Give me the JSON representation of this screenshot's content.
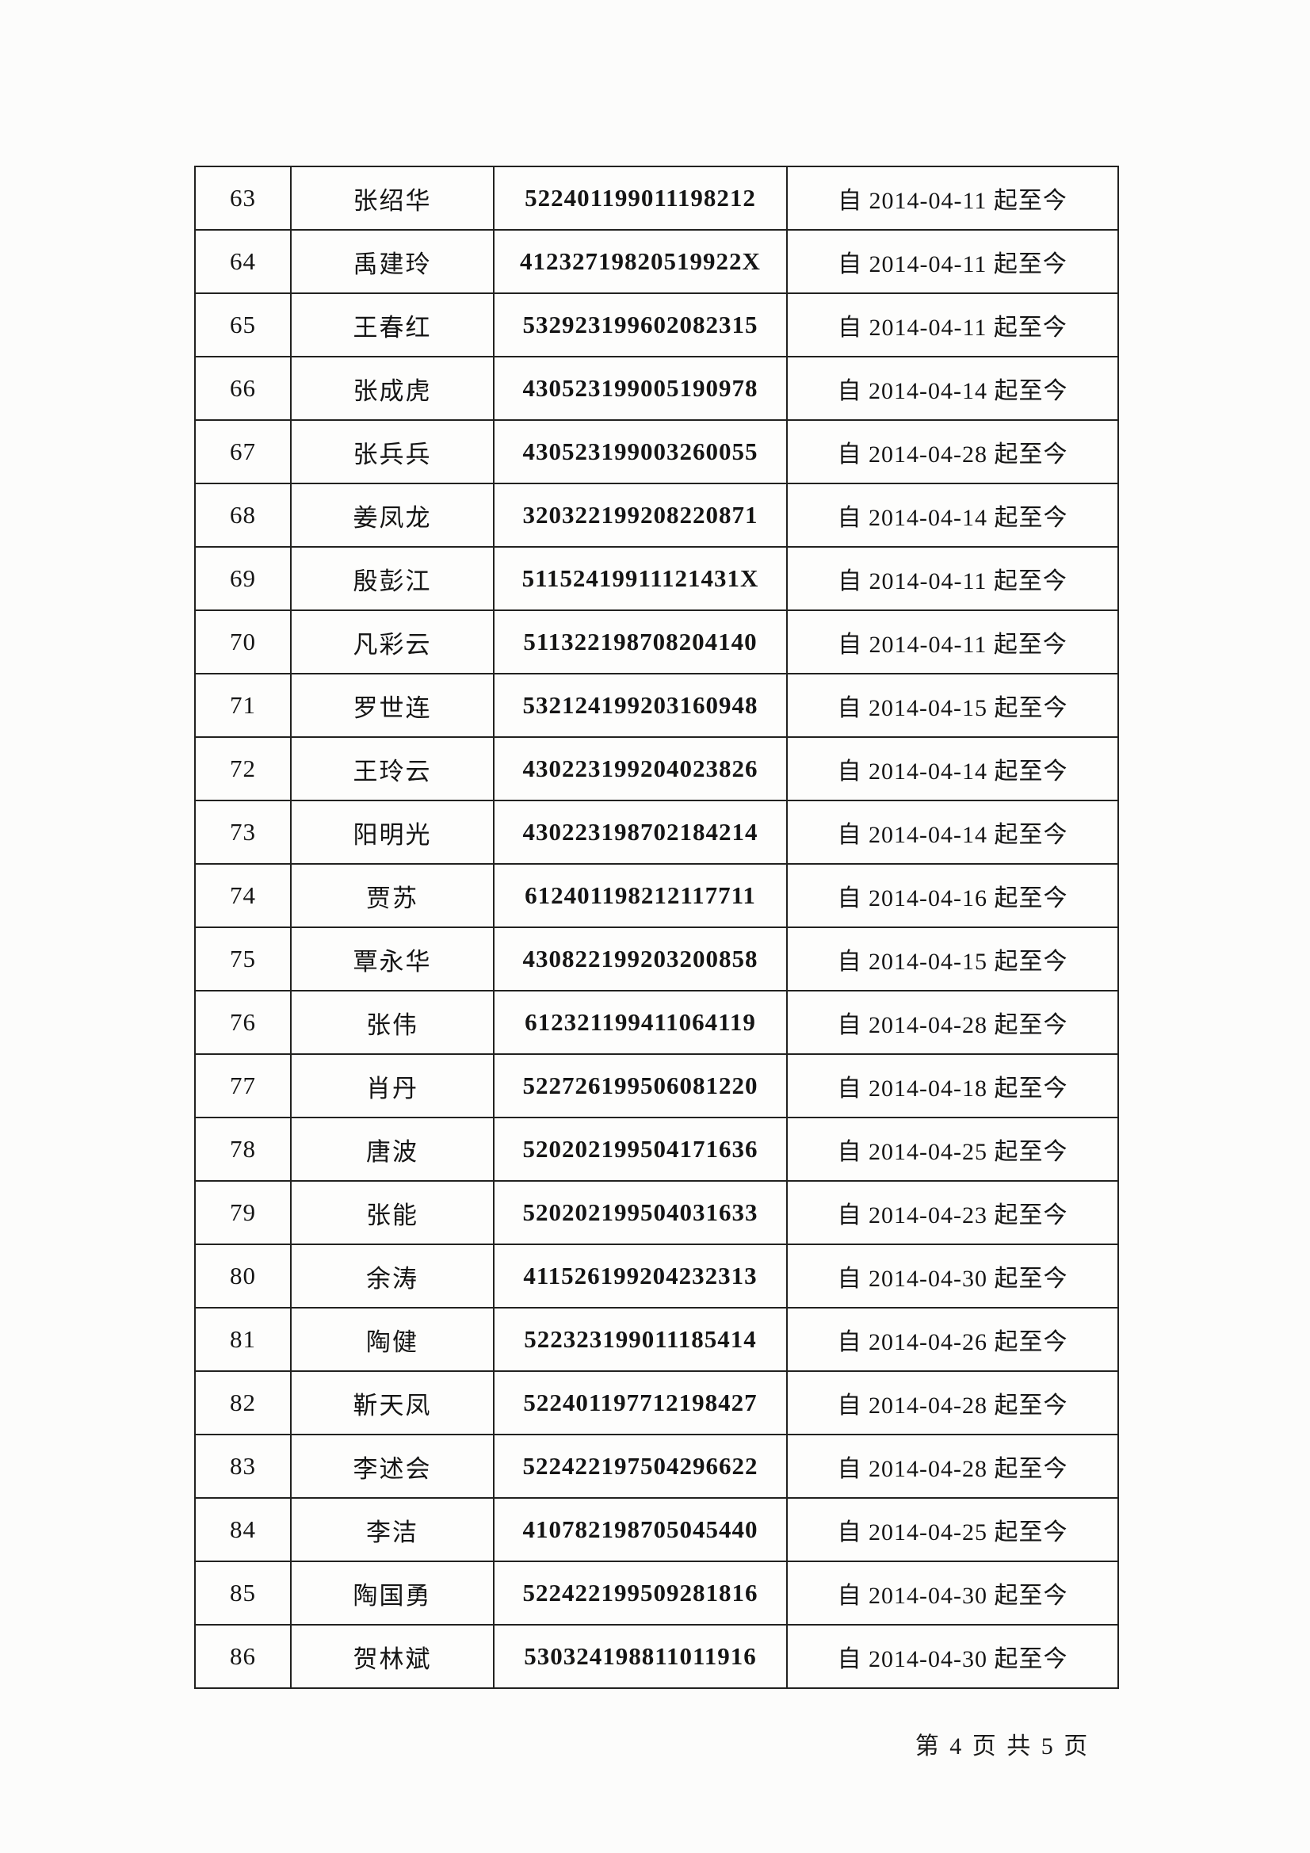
{
  "page": {
    "footer": "第 4 页 共 5 页"
  },
  "table": {
    "rows": [
      {
        "num": "63",
        "name": "张绍华",
        "id_number": "522401199011198212",
        "period": "自 2014-04-11 起至今"
      },
      {
        "num": "64",
        "name": "禹建玲",
        "id_number": "41232719820519922X",
        "period": "自 2014-04-11 起至今"
      },
      {
        "num": "65",
        "name": "王春红",
        "id_number": "532923199602082315",
        "period": "自 2014-04-11 起至今"
      },
      {
        "num": "66",
        "name": "张成虎",
        "id_number": "430523199005190978",
        "period": "自 2014-04-14 起至今"
      },
      {
        "num": "67",
        "name": "张兵兵",
        "id_number": "430523199003260055",
        "period": "自 2014-04-28 起至今"
      },
      {
        "num": "68",
        "name": "姜凤龙",
        "id_number": "320322199208220871",
        "period": "自 2014-04-14 起至今"
      },
      {
        "num": "69",
        "name": "殷彭江",
        "id_number": "51152419911121431X",
        "period": "自 2014-04-11 起至今"
      },
      {
        "num": "70",
        "name": "凡彩云",
        "id_number": "511322198708204140",
        "period": "自 2014-04-11 起至今"
      },
      {
        "num": "71",
        "name": "罗世连",
        "id_number": "532124199203160948",
        "period": "自 2014-04-15 起至今"
      },
      {
        "num": "72",
        "name": "王玲云",
        "id_number": "430223199204023826",
        "period": "自 2014-04-14 起至今"
      },
      {
        "num": "73",
        "name": "阳明光",
        "id_number": "430223198702184214",
        "period": "自 2014-04-14 起至今"
      },
      {
        "num": "74",
        "name": "贾苏",
        "id_number": "612401198212117711",
        "period": "自 2014-04-16 起至今"
      },
      {
        "num": "75",
        "name": "覃永华",
        "id_number": "430822199203200858",
        "period": "自 2014-04-15 起至今"
      },
      {
        "num": "76",
        "name": "张伟",
        "id_number": "612321199411064119",
        "period": "自 2014-04-28 起至今"
      },
      {
        "num": "77",
        "name": "肖丹",
        "id_number": "522726199506081220",
        "period": "自 2014-04-18 起至今"
      },
      {
        "num": "78",
        "name": "唐波",
        "id_number": "520202199504171636",
        "period": "自 2014-04-25 起至今"
      },
      {
        "num": "79",
        "name": "张能",
        "id_number": "520202199504031633",
        "period": "自 2014-04-23 起至今"
      },
      {
        "num": "80",
        "name": "余涛",
        "id_number": "411526199204232313",
        "period": "自 2014-04-30 起至今"
      },
      {
        "num": "81",
        "name": "陶健",
        "id_number": "522323199011185414",
        "period": "自 2014-04-26 起至今"
      },
      {
        "num": "82",
        "name": "靳天凤",
        "id_number": "522401197712198427",
        "period": "自 2014-04-28 起至今"
      },
      {
        "num": "83",
        "name": "李述会",
        "id_number": "522422197504296622",
        "period": "自 2014-04-28 起至今"
      },
      {
        "num": "84",
        "name": "李洁",
        "id_number": "410782198705045440",
        "period": "自 2014-04-25 起至今"
      },
      {
        "num": "85",
        "name": "陶国勇",
        "id_number": "522422199509281816",
        "period": "自 2014-04-30 起至今"
      },
      {
        "num": "86",
        "name": "贺林斌",
        "id_number": "530324198811011916",
        "period": "自 2014-04-30 起至今"
      }
    ]
  }
}
